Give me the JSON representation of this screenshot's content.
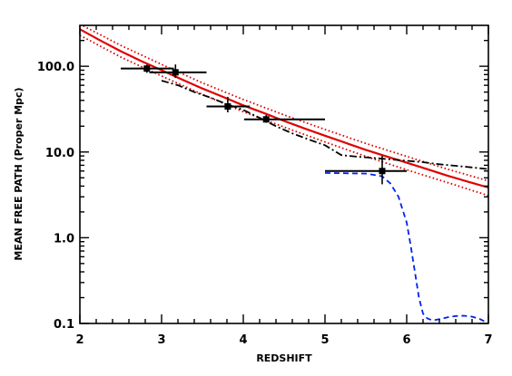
{
  "chart_data": {
    "type": "line",
    "title": "",
    "xlabel": "REDSHIFT",
    "ylabel": "MEAN FREE PATH (Proper Mpc)",
    "xlim": [
      2,
      7
    ],
    "ylim": [
      0.1,
      300
    ],
    "yscale": "log",
    "grid": false,
    "x_ticks": [
      2,
      3,
      4,
      5,
      6,
      7
    ],
    "x_tick_labels": [
      "2",
      "3",
      "4",
      "5",
      "6",
      "7"
    ],
    "y_ticks": [
      0.1,
      1.0,
      10.0,
      100.0
    ],
    "y_tick_labels": [
      "0.1",
      "1.0",
      "10.0",
      "100.0"
    ],
    "measurements": [
      {
        "x": 2.82,
        "y": 94,
        "xerr": [
          0.32,
          0.33
        ],
        "yerr": [
          10,
          10
        ]
      },
      {
        "x": 3.17,
        "y": 85,
        "xerr": [
          0.32,
          0.38
        ],
        "yerr": [
          12,
          20
        ]
      },
      {
        "x": 3.81,
        "y": 34,
        "xerr": [
          0.26,
          0.27
        ],
        "yerr": [
          5,
          10
        ]
      },
      {
        "x": 4.28,
        "y": 24,
        "xerr": [
          0.27,
          0.72
        ],
        "yerr": [
          2,
          3
        ]
      },
      {
        "x": 5.7,
        "y": 6.0,
        "xerr": [
          0.7,
          0.3
        ],
        "yerr": [
          1.8,
          3.0
        ]
      }
    ],
    "series": [
      {
        "color": "#e00000",
        "style": "solid",
        "x": [
          2.0,
          2.25,
          2.5,
          2.75,
          3.0,
          3.25,
          3.5,
          3.75,
          4.0,
          4.25,
          4.5,
          4.75,
          5.0,
          5.25,
          5.5,
          5.75,
          6.0,
          6.25,
          6.5,
          6.75,
          7.0
        ],
        "y": [
          270,
          200,
          150,
          115,
          90,
          70,
          55,
          44,
          35,
          28.5,
          23,
          18.8,
          15.5,
          12.8,
          10.6,
          8.9,
          7.5,
          6.3,
          5.3,
          4.5,
          3.85
        ]
      },
      {
        "color": "#e00000",
        "style": "dotted",
        "x": [
          2.0,
          2.5,
          3.0,
          3.5,
          4.0,
          4.5,
          5.0,
          5.5,
          6.0,
          6.5,
          7.0
        ],
        "y": [
          310,
          175,
          105,
          64,
          41,
          27,
          18.3,
          12.6,
          8.9,
          6.3,
          4.6
        ]
      },
      {
        "color": "#e00000",
        "style": "dotted",
        "x": [
          2.0,
          2.5,
          3.0,
          3.5,
          4.0,
          4.5,
          5.0,
          5.5,
          6.0,
          6.5,
          7.0
        ],
        "y": [
          230,
          128,
          77,
          47,
          29.5,
          19.5,
          13.1,
          8.9,
          6.2,
          4.4,
          3.1
        ]
      },
      {
        "color": "#000000",
        "style": "dashdot",
        "x": [
          3.0,
          3.2,
          3.4,
          3.6,
          3.8,
          4.0,
          4.2,
          4.4,
          4.6,
          4.8,
          5.0,
          5.2,
          5.4,
          5.6,
          5.8,
          6.0,
          6.2,
          6.4,
          6.6,
          6.8,
          7.0
        ],
        "y": [
          68,
          60,
          50,
          43,
          36,
          31,
          25,
          20,
          16.5,
          14,
          12,
          9.2,
          8.8,
          8.5,
          8.2,
          7.9,
          7.6,
          7.2,
          6.9,
          6.6,
          6.3
        ]
      },
      {
        "color": "#0022ee",
        "style": "dashed",
        "x": [
          5.0,
          5.5,
          5.7,
          5.8,
          5.9,
          6.0,
          6.05,
          6.1,
          6.15,
          6.2,
          6.25,
          6.3,
          6.35,
          6.4,
          6.5,
          6.6,
          6.7,
          6.8,
          6.9,
          7.0
        ],
        "y": [
          5.7,
          5.6,
          5.2,
          4.3,
          3.0,
          1.5,
          0.8,
          0.4,
          0.2,
          0.13,
          0.115,
          0.11,
          0.11,
          0.112,
          0.118,
          0.122,
          0.123,
          0.12,
          0.112,
          0.1
        ]
      }
    ]
  }
}
